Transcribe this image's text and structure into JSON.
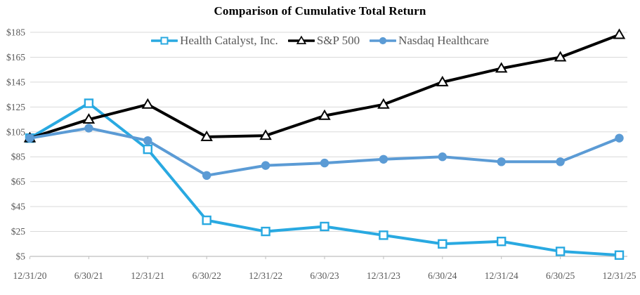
{
  "title": "Comparison of Cumulative Total Return",
  "colors": {
    "health_catalyst": "#29A9E1",
    "sp500": "#000000",
    "nasdaq_healthcare": "#5B9BD5",
    "gridline": "#D9D9D9",
    "axis_line": "#BFBFBF",
    "label_text": "#595959",
    "title_text": "#000000",
    "background": "#FFFFFF",
    "marker_fill": "#FFFFFF"
  },
  "chart_data": {
    "type": "line",
    "title": "Comparison of Cumulative Total Return",
    "x": [
      "12/31/20",
      "6/30/21",
      "12/31/21",
      "6/30/22",
      "12/31/22",
      "6/30/23",
      "12/31/23",
      "6/30/24",
      "12/31/24",
      "6/30/25",
      "12/31/25"
    ],
    "series": [
      {
        "name": "Health Catalyst, Inc.",
        "marker": "square",
        "color": "#29A9E1",
        "values": [
          100,
          128,
          91,
          34,
          25,
          29,
          22,
          15,
          17,
          9,
          6
        ]
      },
      {
        "name": "S&P 500",
        "marker": "triangle",
        "color": "#000000",
        "values": [
          100,
          115,
          127,
          101,
          102,
          118,
          127,
          145,
          156,
          165,
          183
        ]
      },
      {
        "name": "Nasdaq Healthcare",
        "marker": "circle",
        "color": "#5B9BD5",
        "values": [
          100,
          108,
          98,
          70,
          78,
          80,
          83,
          85,
          81,
          81,
          100
        ]
      }
    ],
    "y_ticks": [
      {
        "value": 185,
        "label": "$185"
      },
      {
        "value": 165,
        "label": "$165"
      },
      {
        "value": 145,
        "label": "$145"
      },
      {
        "value": 125,
        "label": "$125"
      },
      {
        "value": 105,
        "label": "$105"
      },
      {
        "value": 85,
        "label": "$85"
      },
      {
        "value": 65,
        "label": "$65"
      },
      {
        "value": 45,
        "label": "$45"
      },
      {
        "value": 25,
        "label": "$25"
      },
      {
        "value": 5,
        "label": "$5"
      }
    ],
    "ylim": [
      5,
      185
    ],
    "grid": true,
    "legend_position": "top"
  }
}
